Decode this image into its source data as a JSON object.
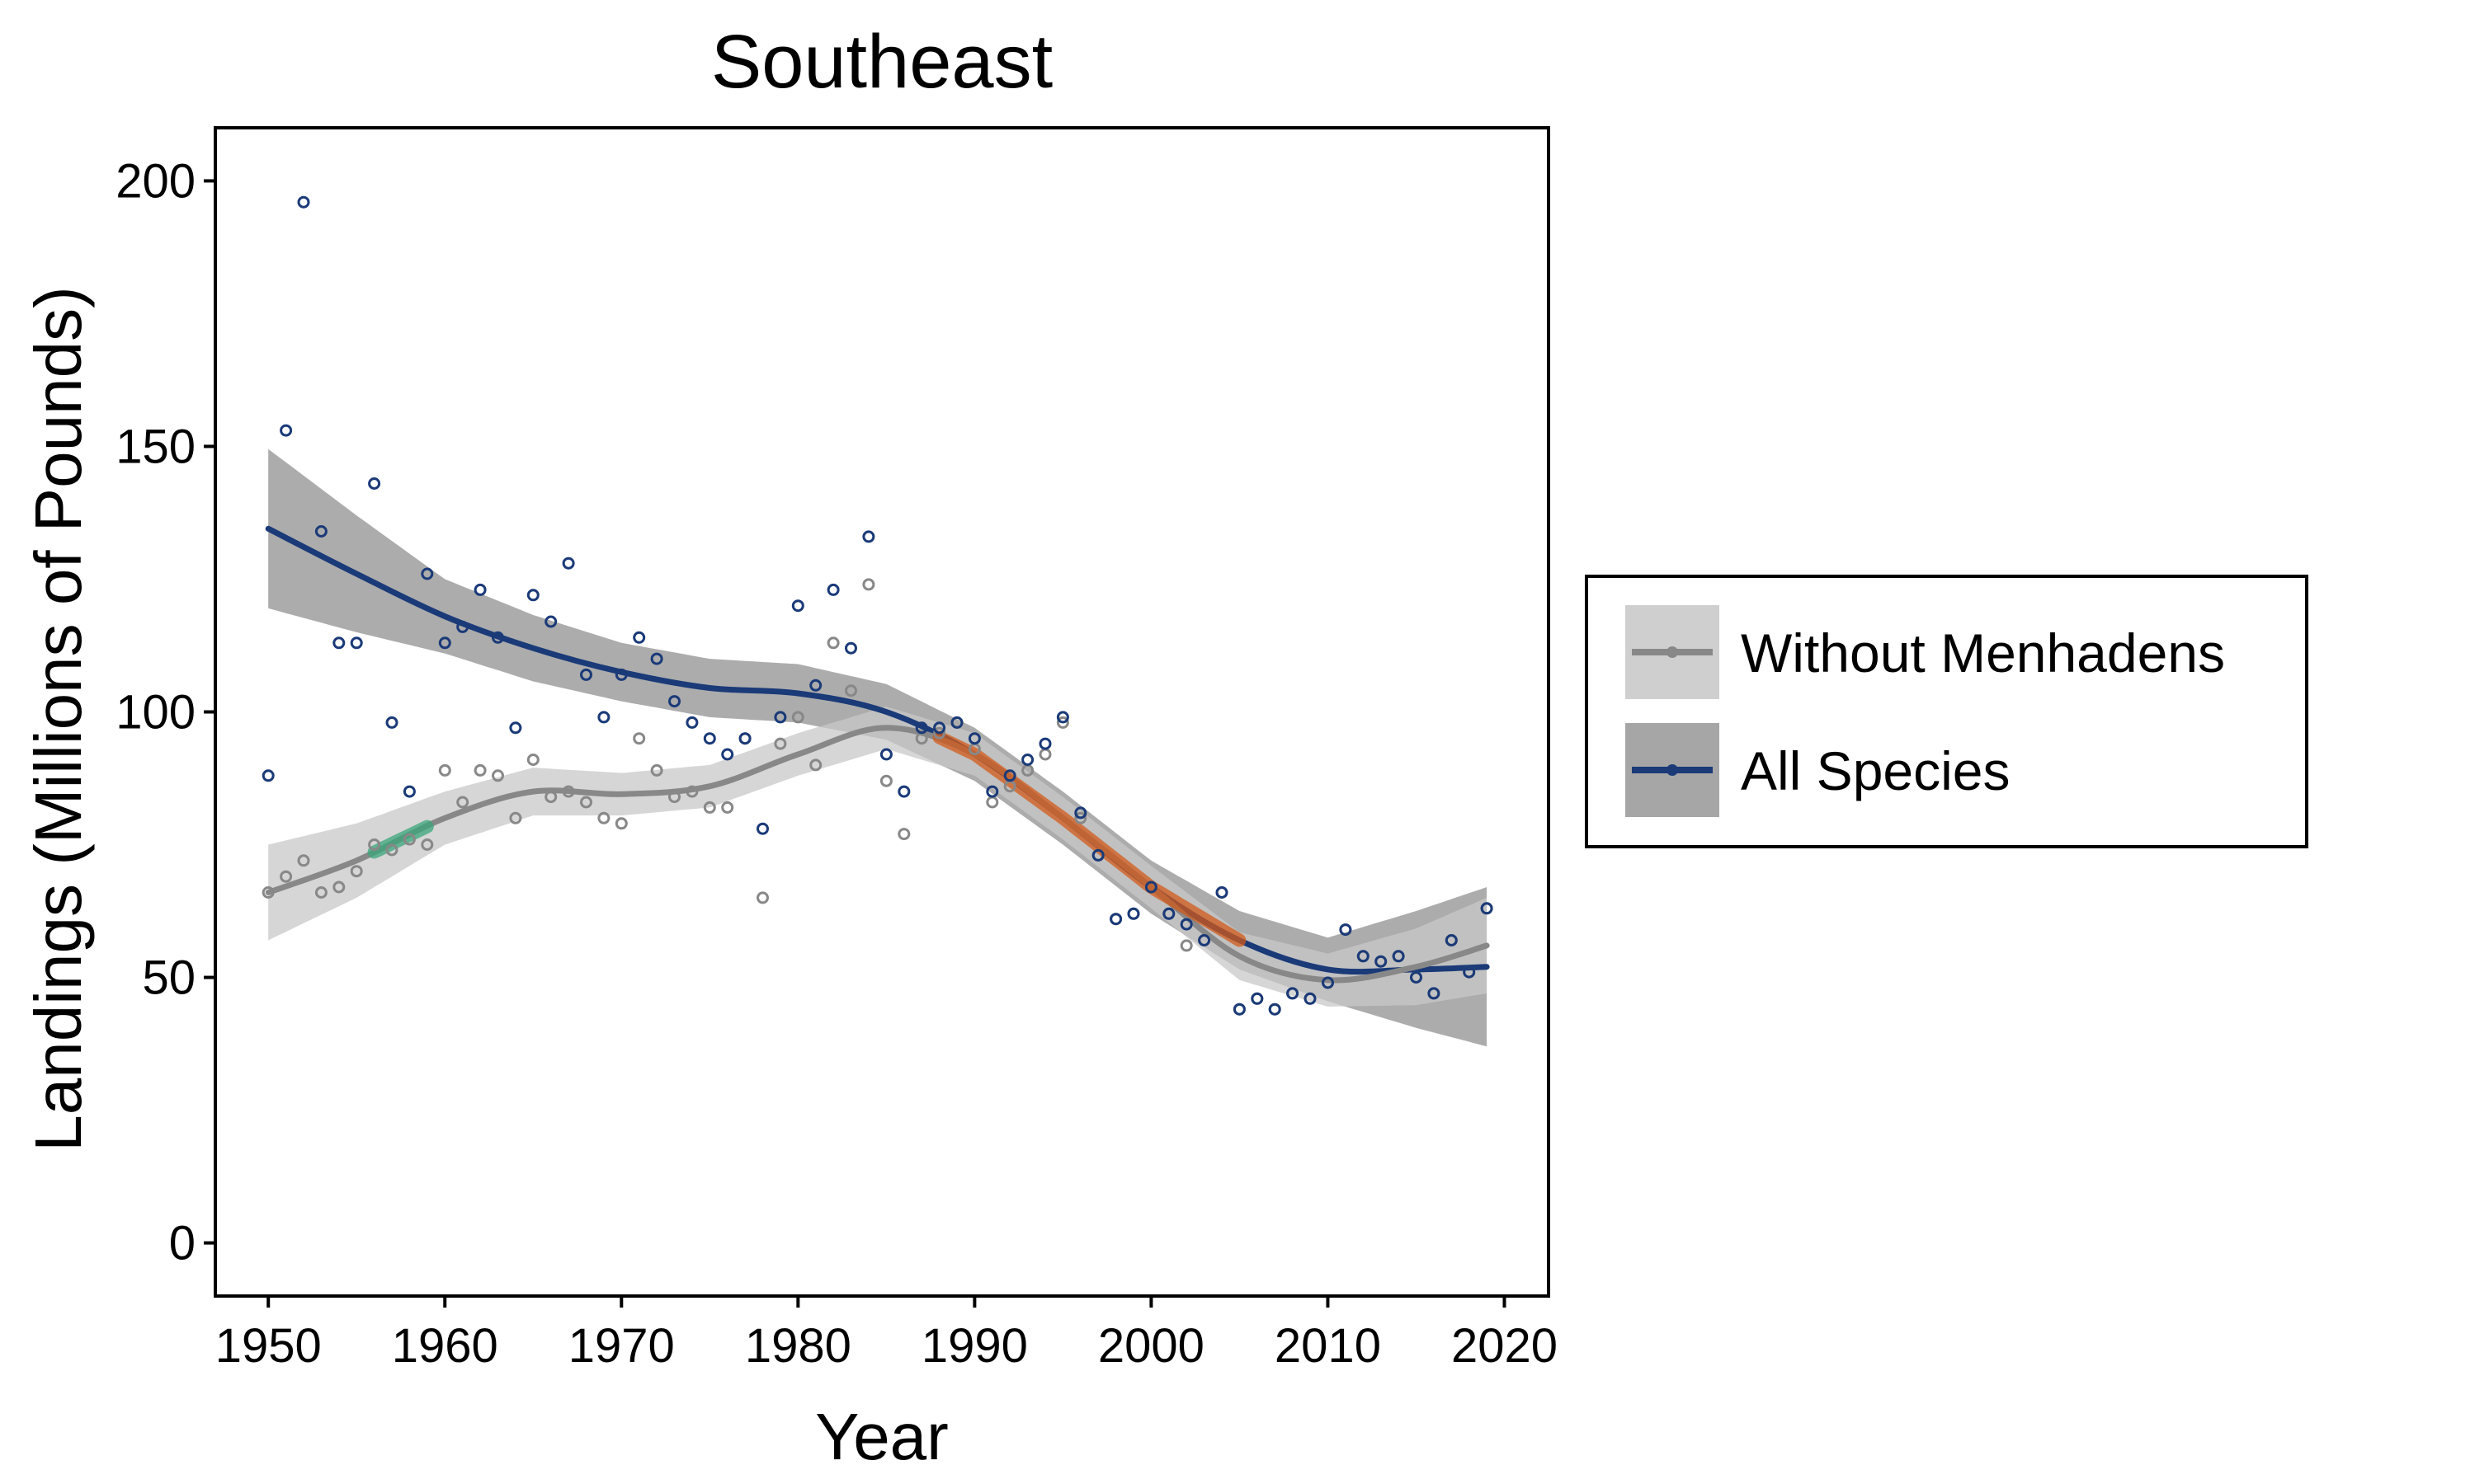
{
  "chart_data": {
    "type": "scatter",
    "title": "Southeast",
    "xlabel": "Year",
    "ylabel": "Landings (Millions of Pounds)",
    "xlim": [
      1947,
      2022.5
    ],
    "ylim": [
      -10,
      210
    ],
    "xticks": [
      1950,
      1960,
      1970,
      1980,
      1990,
      2000,
      2010,
      2020
    ],
    "yticks": [
      0,
      50,
      100,
      150,
      200
    ],
    "grid": false,
    "legend_position": "right",
    "series": [
      {
        "name": "Without Menhadens",
        "color": "#888888",
        "band_color": "#c8c8c8",
        "points": [
          [
            1950,
            66
          ],
          [
            1951,
            69
          ],
          [
            1952,
            72
          ],
          [
            1953,
            66
          ],
          [
            1954,
            67
          ],
          [
            1955,
            70
          ],
          [
            1956,
            75
          ],
          [
            1957,
            74
          ],
          [
            1958,
            76
          ],
          [
            1959,
            75
          ],
          [
            1960,
            89
          ],
          [
            1961,
            83
          ],
          [
            1962,
            89
          ],
          [
            1963,
            88
          ],
          [
            1964,
            80
          ],
          [
            1965,
            91
          ],
          [
            1966,
            84
          ],
          [
            1967,
            85
          ],
          [
            1968,
            83
          ],
          [
            1969,
            80
          ],
          [
            1970,
            79
          ],
          [
            1971,
            95
          ],
          [
            1972,
            89
          ],
          [
            1973,
            84
          ],
          [
            1974,
            85
          ],
          [
            1975,
            82
          ],
          [
            1976,
            82
          ],
          [
            1977,
            95
          ],
          [
            1978,
            65
          ],
          [
            1979,
            94
          ],
          [
            1980,
            99
          ],
          [
            1981,
            90
          ],
          [
            1982,
            113
          ],
          [
            1983,
            104
          ],
          [
            1984,
            124
          ],
          [
            1985,
            87
          ],
          [
            1986,
            77
          ],
          [
            1987,
            95
          ],
          [
            1988,
            96
          ],
          [
            1989,
            98
          ],
          [
            1990,
            93
          ],
          [
            1991,
            83
          ],
          [
            1992,
            86
          ],
          [
            1993,
            89
          ],
          [
            1994,
            92
          ],
          [
            1995,
            98
          ],
          [
            1996,
            80
          ],
          [
            1997,
            73
          ],
          [
            1998,
            61
          ],
          [
            1999,
            62
          ],
          [
            2000,
            67
          ],
          [
            2001,
            62
          ],
          [
            2002,
            56
          ],
          [
            2003,
            57
          ],
          [
            2004,
            66
          ],
          [
            2005,
            44
          ],
          [
            2006,
            46
          ],
          [
            2007,
            44
          ],
          [
            2008,
            47
          ],
          [
            2009,
            46
          ],
          [
            2010,
            49
          ],
          [
            2011,
            59
          ],
          [
            2012,
            54
          ],
          [
            2013,
            53
          ],
          [
            2014,
            54
          ],
          [
            2015,
            50
          ],
          [
            2016,
            47
          ],
          [
            2017,
            57
          ],
          [
            2018,
            51
          ],
          [
            2019,
            63
          ]
        ],
        "trend": [
          [
            1950,
            66
          ],
          [
            1955,
            72
          ],
          [
            1960,
            80
          ],
          [
            1965,
            85
          ],
          [
            1970,
            84.5
          ],
          [
            1975,
            86
          ],
          [
            1980,
            92
          ],
          [
            1985,
            97
          ],
          [
            1990,
            92
          ],
          [
            1995,
            80
          ],
          [
            2000,
            67
          ],
          [
            2005,
            54
          ],
          [
            2010,
            49.5
          ],
          [
            2015,
            52
          ],
          [
            2019,
            56
          ]
        ],
        "band_halfwidth": [
          [
            1950,
            9
          ],
          [
            1960,
            5
          ],
          [
            1970,
            4
          ],
          [
            1980,
            4
          ],
          [
            1990,
            4
          ],
          [
            2000,
            4
          ],
          [
            2010,
            5
          ],
          [
            2019,
            9
          ]
        ]
      },
      {
        "name": "All Species",
        "color": "#1a3a78",
        "band_color": "#9e9e9e",
        "points": [
          [
            1950,
            88
          ],
          [
            1951,
            153
          ],
          [
            1952,
            196
          ],
          [
            1953,
            134
          ],
          [
            1954,
            113
          ],
          [
            1955,
            113
          ],
          [
            1956,
            143
          ],
          [
            1957,
            98
          ],
          [
            1958,
            85
          ],
          [
            1959,
            126
          ],
          [
            1960,
            113
          ],
          [
            1961,
            116
          ],
          [
            1962,
            123
          ],
          [
            1963,
            114
          ],
          [
            1964,
            97
          ],
          [
            1965,
            122
          ],
          [
            1966,
            117
          ],
          [
            1967,
            128
          ],
          [
            1968,
            107
          ],
          [
            1969,
            99
          ],
          [
            1970,
            107
          ],
          [
            1971,
            114
          ],
          [
            1972,
            110
          ],
          [
            1973,
            102
          ],
          [
            1974,
            98
          ],
          [
            1975,
            95
          ],
          [
            1976,
            92
          ],
          [
            1977,
            95
          ],
          [
            1978,
            78
          ],
          [
            1979,
            99
          ],
          [
            1980,
            120
          ],
          [
            1981,
            105
          ],
          [
            1982,
            123
          ],
          [
            1983,
            112
          ],
          [
            1984,
            133
          ],
          [
            1985,
            92
          ],
          [
            1986,
            85
          ],
          [
            1987,
            97
          ],
          [
            1988,
            97
          ],
          [
            1989,
            98
          ],
          [
            1990,
            95
          ],
          [
            1991,
            85
          ],
          [
            1992,
            88
          ],
          [
            1993,
            91
          ],
          [
            1994,
            94
          ],
          [
            1995,
            99
          ],
          [
            1996,
            81
          ],
          [
            1997,
            73
          ],
          [
            1998,
            61
          ],
          [
            1999,
            62
          ],
          [
            2000,
            67
          ],
          [
            2001,
            62
          ],
          [
            2002,
            60
          ],
          [
            2003,
            57
          ],
          [
            2004,
            66
          ],
          [
            2005,
            44
          ],
          [
            2006,
            46
          ],
          [
            2007,
            44
          ],
          [
            2008,
            47
          ],
          [
            2009,
            46
          ],
          [
            2010,
            49
          ],
          [
            2011,
            59
          ],
          [
            2012,
            54
          ],
          [
            2013,
            53
          ],
          [
            2014,
            54
          ],
          [
            2015,
            50
          ],
          [
            2016,
            47
          ],
          [
            2017,
            57
          ],
          [
            2018,
            51
          ],
          [
            2019,
            63
          ]
        ],
        "trend": [
          [
            1950,
            134.5
          ],
          [
            1955,
            126
          ],
          [
            1960,
            118
          ],
          [
            1965,
            112
          ],
          [
            1970,
            107.5
          ],
          [
            1975,
            104.5
          ],
          [
            1980,
            103.5
          ],
          [
            1985,
            100
          ],
          [
            1990,
            92
          ],
          [
            1995,
            80
          ],
          [
            2000,
            67
          ],
          [
            2005,
            57
          ],
          [
            2010,
            51.5
          ],
          [
            2015,
            51.5
          ],
          [
            2019,
            52
          ]
        ],
        "band_halfwidth": [
          [
            1950,
            15
          ],
          [
            1960,
            7
          ],
          [
            1970,
            5.5
          ],
          [
            1980,
            5.5
          ],
          [
            1990,
            5
          ],
          [
            2000,
            5
          ],
          [
            2010,
            6
          ],
          [
            2019,
            15
          ]
        ]
      }
    ],
    "highlights": [
      {
        "color": "#3aa67a",
        "range": [
          1956,
          1959
        ],
        "on_series": "Without Menhadens"
      },
      {
        "color": "#d2591a",
        "range": [
          1988,
          2005
        ],
        "on_series": "All Species"
      }
    ]
  }
}
